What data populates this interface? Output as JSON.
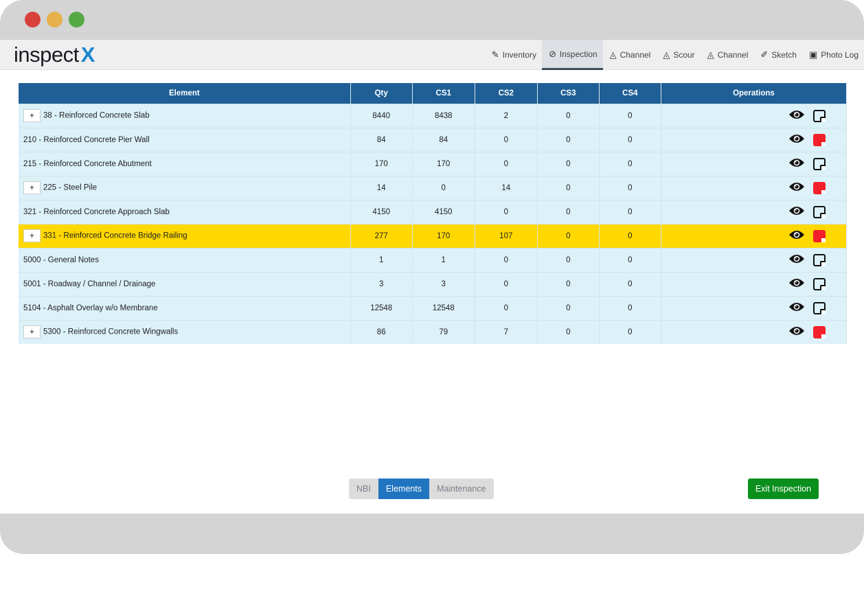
{
  "window": {
    "controls": [
      "close",
      "minimize",
      "maximize"
    ]
  },
  "logo": {
    "text": "inspect",
    "mark": "X"
  },
  "nav": [
    {
      "label": "Inventory",
      "icon": "edit-icon",
      "active": false
    },
    {
      "label": "Inspection",
      "icon": "eye-slash-icon",
      "active": true
    },
    {
      "label": "Channel",
      "icon": "area-chart-icon",
      "active": false
    },
    {
      "label": "Scour",
      "icon": "area-chart-icon",
      "active": false
    },
    {
      "label": "Channel",
      "icon": "area-chart-icon",
      "active": false
    },
    {
      "label": "Sketch",
      "icon": "brush-icon",
      "active": false
    },
    {
      "label": "Photo Log",
      "icon": "photos-icon",
      "active": false
    }
  ],
  "table": {
    "headers": [
      "Element",
      "Qty",
      "CS1",
      "CS2",
      "CS3",
      "CS4",
      "Operations"
    ],
    "rows": [
      {
        "element": "38 - Reinforced Concrete Slab",
        "qty": "8440",
        "cs1": "8438",
        "cs2": "2",
        "cs3": "0",
        "cs4": "0",
        "expand": true,
        "note": "empty",
        "highlight": false
      },
      {
        "element": "210 - Reinforced Concrete Pier Wall",
        "qty": "84",
        "cs1": "84",
        "cs2": "0",
        "cs3": "0",
        "cs4": "0",
        "expand": false,
        "note": "red",
        "highlight": false
      },
      {
        "element": "215 - Reinforced Concrete Abutment",
        "qty": "170",
        "cs1": "170",
        "cs2": "0",
        "cs3": "0",
        "cs4": "0",
        "expand": false,
        "note": "empty",
        "highlight": false
      },
      {
        "element": "225 - Steel Pile",
        "qty": "14",
        "cs1": "0",
        "cs2": "14",
        "cs3": "0",
        "cs4": "0",
        "expand": true,
        "note": "red",
        "highlight": false
      },
      {
        "element": "321 - Reinforced Concrete Approach Slab",
        "qty": "4150",
        "cs1": "4150",
        "cs2": "0",
        "cs3": "0",
        "cs4": "0",
        "expand": false,
        "note": "empty",
        "highlight": false
      },
      {
        "element": "331 - Reinforced Concrete Bridge Railing",
        "qty": "277",
        "cs1": "170",
        "cs2": "107",
        "cs3": "0",
        "cs4": "0",
        "expand": true,
        "note": "red",
        "highlight": true
      },
      {
        "element": "5000 - General Notes",
        "qty": "1",
        "cs1": "1",
        "cs2": "0",
        "cs3": "0",
        "cs4": "0",
        "expand": false,
        "note": "empty",
        "highlight": false
      },
      {
        "element": "5001 - Roadway / Channel / Drainage",
        "qty": "3",
        "cs1": "3",
        "cs2": "0",
        "cs3": "0",
        "cs4": "0",
        "expand": false,
        "note": "empty",
        "highlight": false
      },
      {
        "element": "5104 - Asphalt Overlay w/o Membrane",
        "qty": "12548",
        "cs1": "12548",
        "cs2": "0",
        "cs3": "0",
        "cs4": "0",
        "expand": false,
        "note": "empty",
        "highlight": false
      },
      {
        "element": "5300 - Reinforced Concrete Wingwalls",
        "qty": "86",
        "cs1": "79",
        "cs2": "7",
        "cs3": "0",
        "cs4": "0",
        "expand": true,
        "note": "red",
        "highlight": false
      }
    ],
    "expand_label": "+"
  },
  "segments": [
    {
      "label": "NBI",
      "active": false
    },
    {
      "label": "Elements",
      "active": true
    },
    {
      "label": "Maintenance",
      "active": false
    }
  ],
  "exit_label": "Exit Inspection",
  "colors": {
    "header": "#1f5f96",
    "row": "#dcf1f8",
    "highlight": "#ffd800",
    "exit": "#0a8f1d",
    "active_segment": "#2175c0",
    "note_flag": "#f2202a"
  }
}
